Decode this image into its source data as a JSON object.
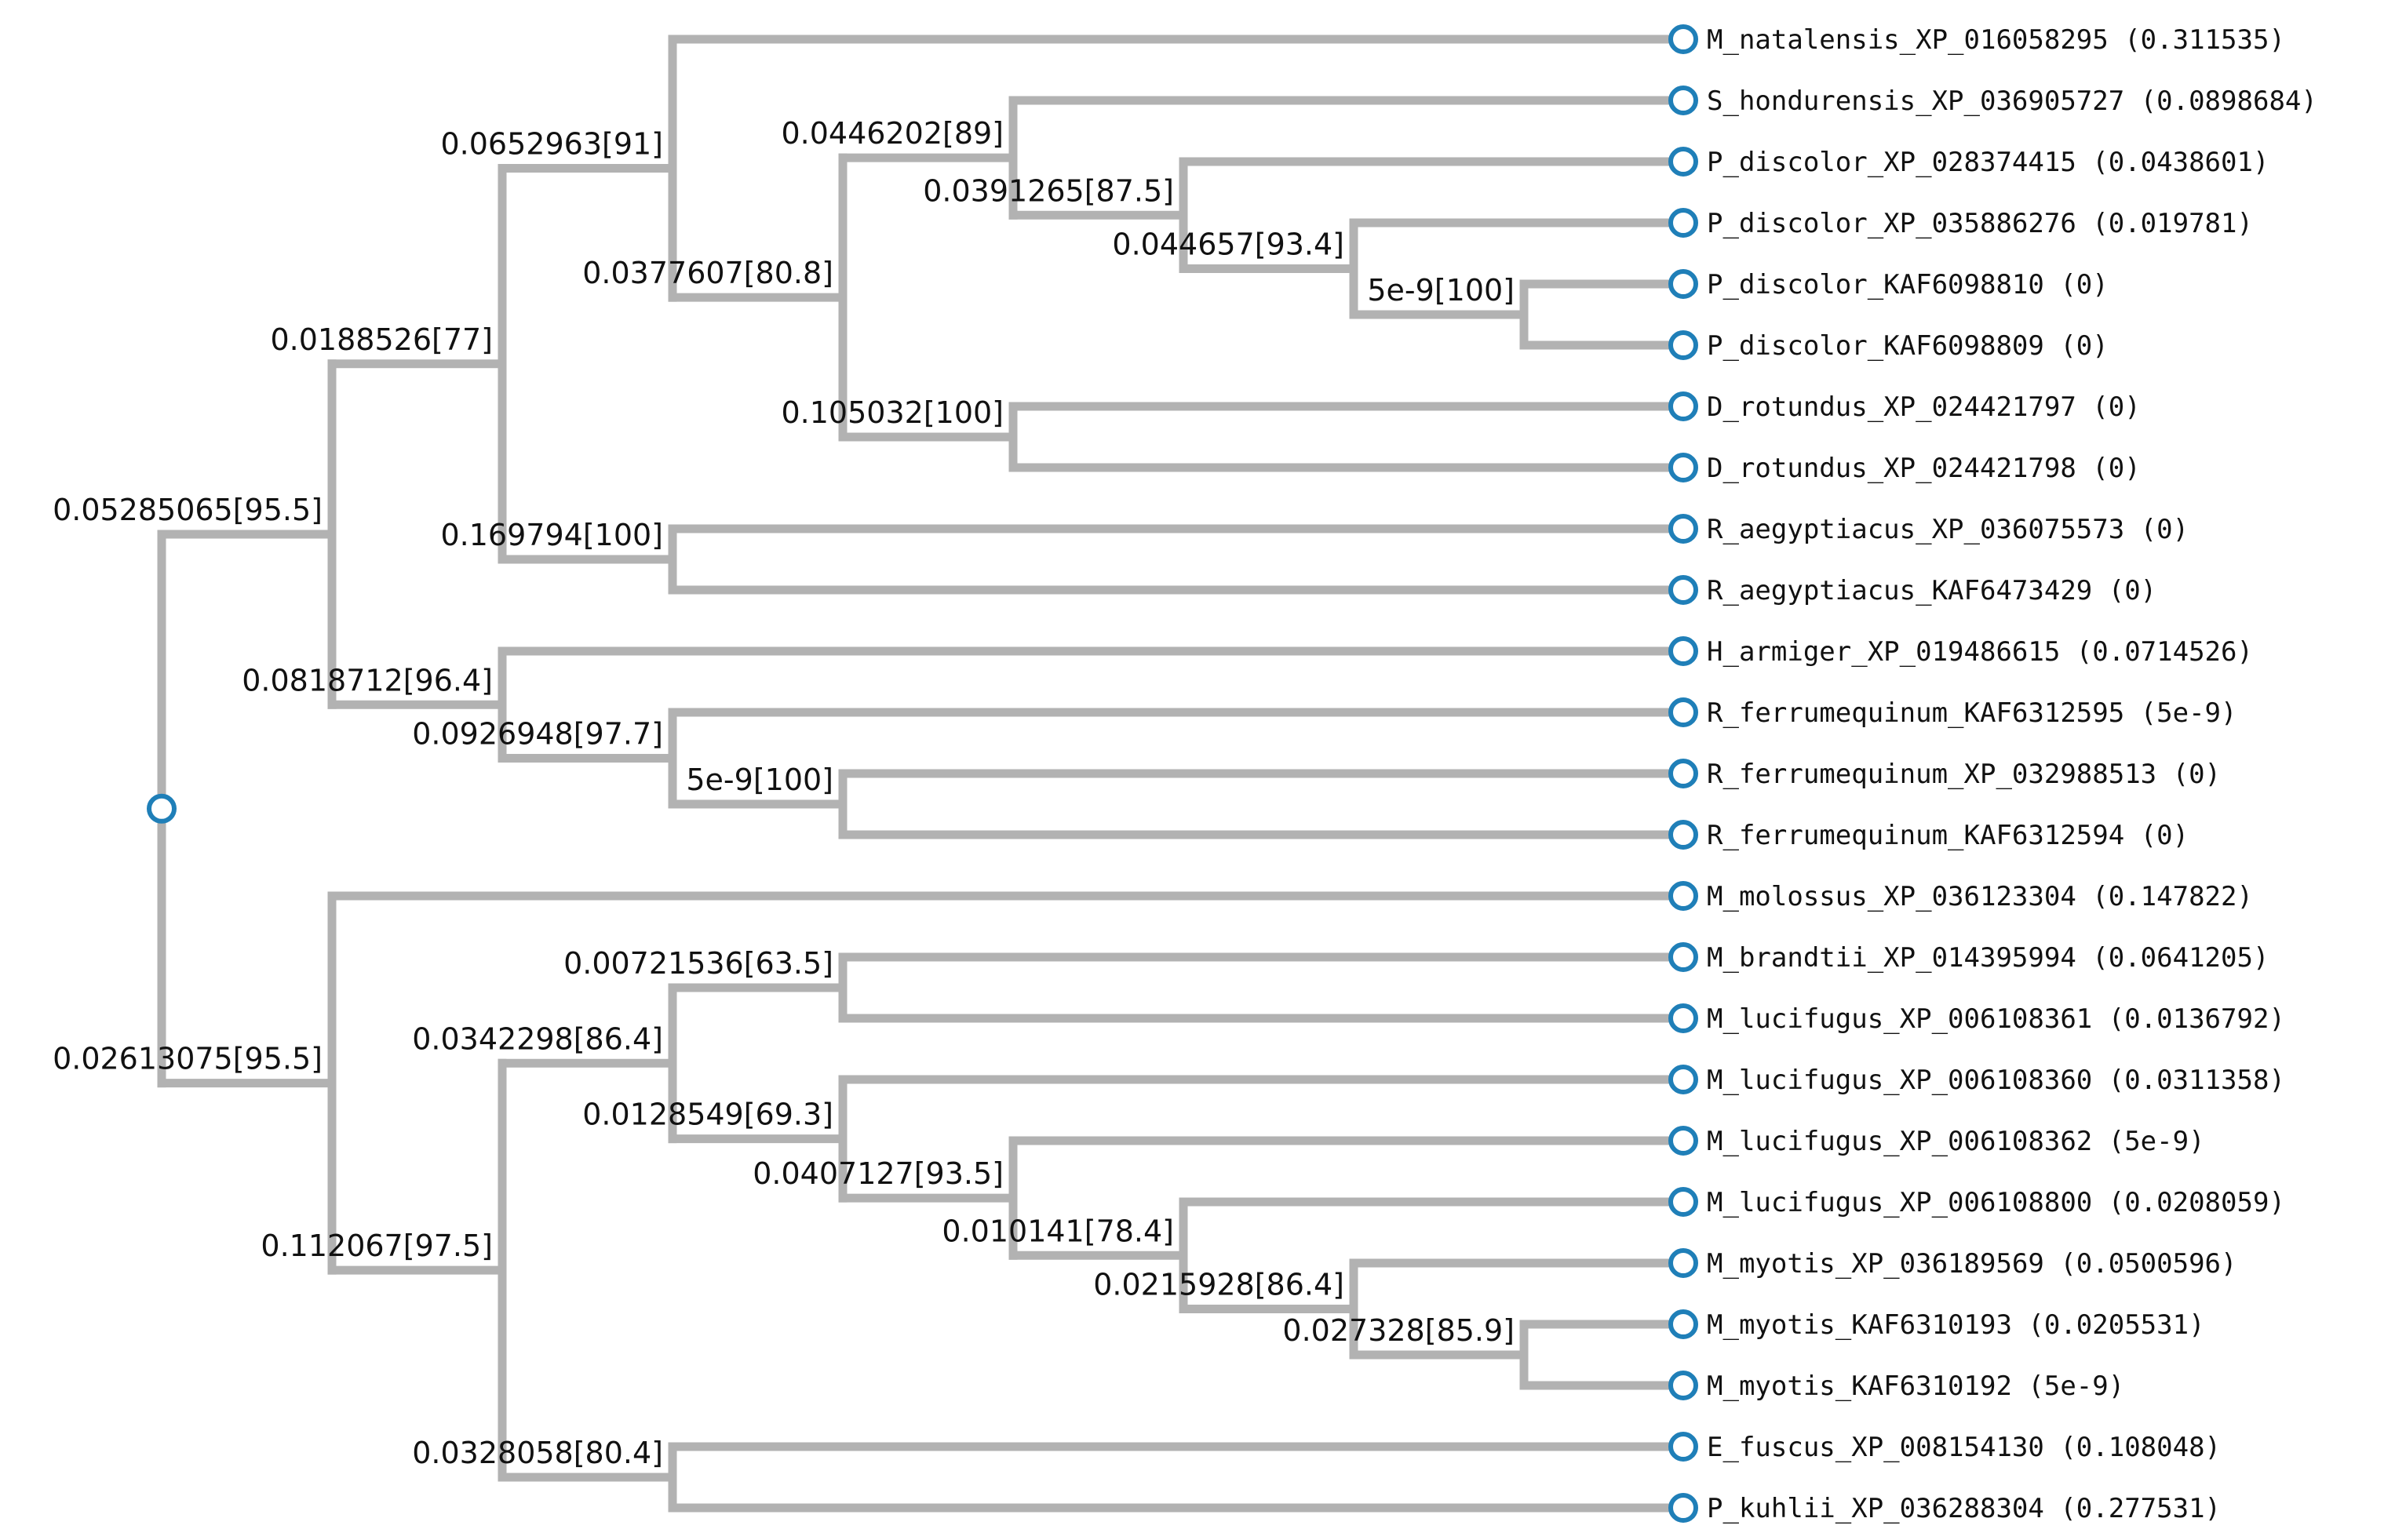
{
  "tree": {
    "type": "phylogenetic-tree",
    "root": {
      "children": [
        {
          "label": "0.05285065[95.5]",
          "children": [
            {
              "label": "0.0188526[77]",
              "children": [
                {
                  "label": "0.0652963[91]",
                  "children": [
                    {
                      "leaf": "M_natalensis_XP_016058295 (0.311535)"
                    },
                    {
                      "label": "0.0377607[80.8]",
                      "children": [
                        {
                          "label": "0.0446202[89]",
                          "children": [
                            {
                              "leaf": "S_hondurensis_XP_036905727 (0.0898684)"
                            },
                            {
                              "label": "0.0391265[87.5]",
                              "children": [
                                {
                                  "leaf": "P_discolor_XP_028374415 (0.0438601)"
                                },
                                {
                                  "label": "0.044657[93.4]",
                                  "children": [
                                    {
                                      "leaf": "P_discolor_XP_035886276 (0.019781)"
                                    },
                                    {
                                      "label": "5e-9[100]",
                                      "children": [
                                        {
                                          "leaf": "P_discolor_KAF6098810 (0)"
                                        },
                                        {
                                          "leaf": "P_discolor_KAF6098809 (0)"
                                        }
                                      ]
                                    }
                                  ]
                                }
                              ]
                            }
                          ]
                        },
                        {
                          "label": "0.105032[100]",
                          "children": [
                            {
                              "leaf": "D_rotundus_XP_024421797 (0)"
                            },
                            {
                              "leaf": "D_rotundus_XP_024421798 (0)"
                            }
                          ]
                        }
                      ]
                    }
                  ]
                },
                {
                  "label": "0.169794[100]",
                  "children": [
                    {
                      "leaf": "R_aegyptiacus_XP_036075573 (0)"
                    },
                    {
                      "leaf": "R_aegyptiacus_KAF6473429 (0)"
                    }
                  ]
                }
              ]
            },
            {
              "label": "0.0818712[96.4]",
              "children": [
                {
                  "leaf": "H_armiger_XP_019486615 (0.0714526)"
                },
                {
                  "label": "0.0926948[97.7]",
                  "children": [
                    {
                      "leaf": "R_ferrumequinum_KAF6312595 (5e-9)"
                    },
                    {
                      "label": "5e-9[100]",
                      "children": [
                        {
                          "leaf": "R_ferrumequinum_XP_032988513 (0)"
                        },
                        {
                          "leaf": "R_ferrumequinum_KAF6312594 (0)"
                        }
                      ]
                    }
                  ]
                }
              ]
            }
          ]
        },
        {
          "label": "0.02613075[95.5]",
          "children": [
            {
              "leaf": "M_molossus_XP_036123304 (0.147822)"
            },
            {
              "label": "0.112067[97.5]",
              "children": [
                {
                  "label": "0.0342298[86.4]",
                  "children": [
                    {
                      "label": "0.00721536[63.5]",
                      "children": [
                        {
                          "leaf": "M_brandtii_XP_014395994 (0.0641205)"
                        },
                        {
                          "leaf": "M_lucifugus_XP_006108361 (0.0136792)"
                        }
                      ]
                    },
                    {
                      "label": "0.0128549[69.3]",
                      "children": [
                        {
                          "leaf": "M_lucifugus_XP_006108360 (0.0311358)"
                        },
                        {
                          "label": "0.0407127[93.5]",
                          "children": [
                            {
                              "leaf": "M_lucifugus_XP_006108362 (5e-9)"
                            },
                            {
                              "label": "0.010141[78.4]",
                              "children": [
                                {
                                  "leaf": "M_lucifugus_XP_006108800 (0.0208059)"
                                },
                                {
                                  "label": "0.0215928[86.4]",
                                  "children": [
                                    {
                                      "leaf": "M_myotis_XP_036189569 (0.0500596)"
                                    },
                                    {
                                      "label": "0.027328[85.9]",
                                      "children": [
                                        {
                                          "leaf": "M_myotis_KAF6310193 (0.0205531)"
                                        },
                                        {
                                          "leaf": "M_myotis_KAF6310192 (5e-9)"
                                        }
                                      ]
                                    }
                                  ]
                                }
                              ]
                            }
                          ]
                        }
                      ]
                    }
                  ]
                },
                {
                  "label": "0.0328058[80.4]",
                  "children": [
                    {
                      "leaf": "E_fuscus_XP_008154130 (0.108048)"
                    },
                    {
                      "leaf": "P_kuhlii_XP_036288304 (0.277531)"
                    }
                  ]
                }
              ]
            }
          ]
        }
      ]
    }
  },
  "colors": {
    "branch": "#b2b2b2",
    "node_stroke": "#1f7fb8",
    "text": "#111111"
  }
}
